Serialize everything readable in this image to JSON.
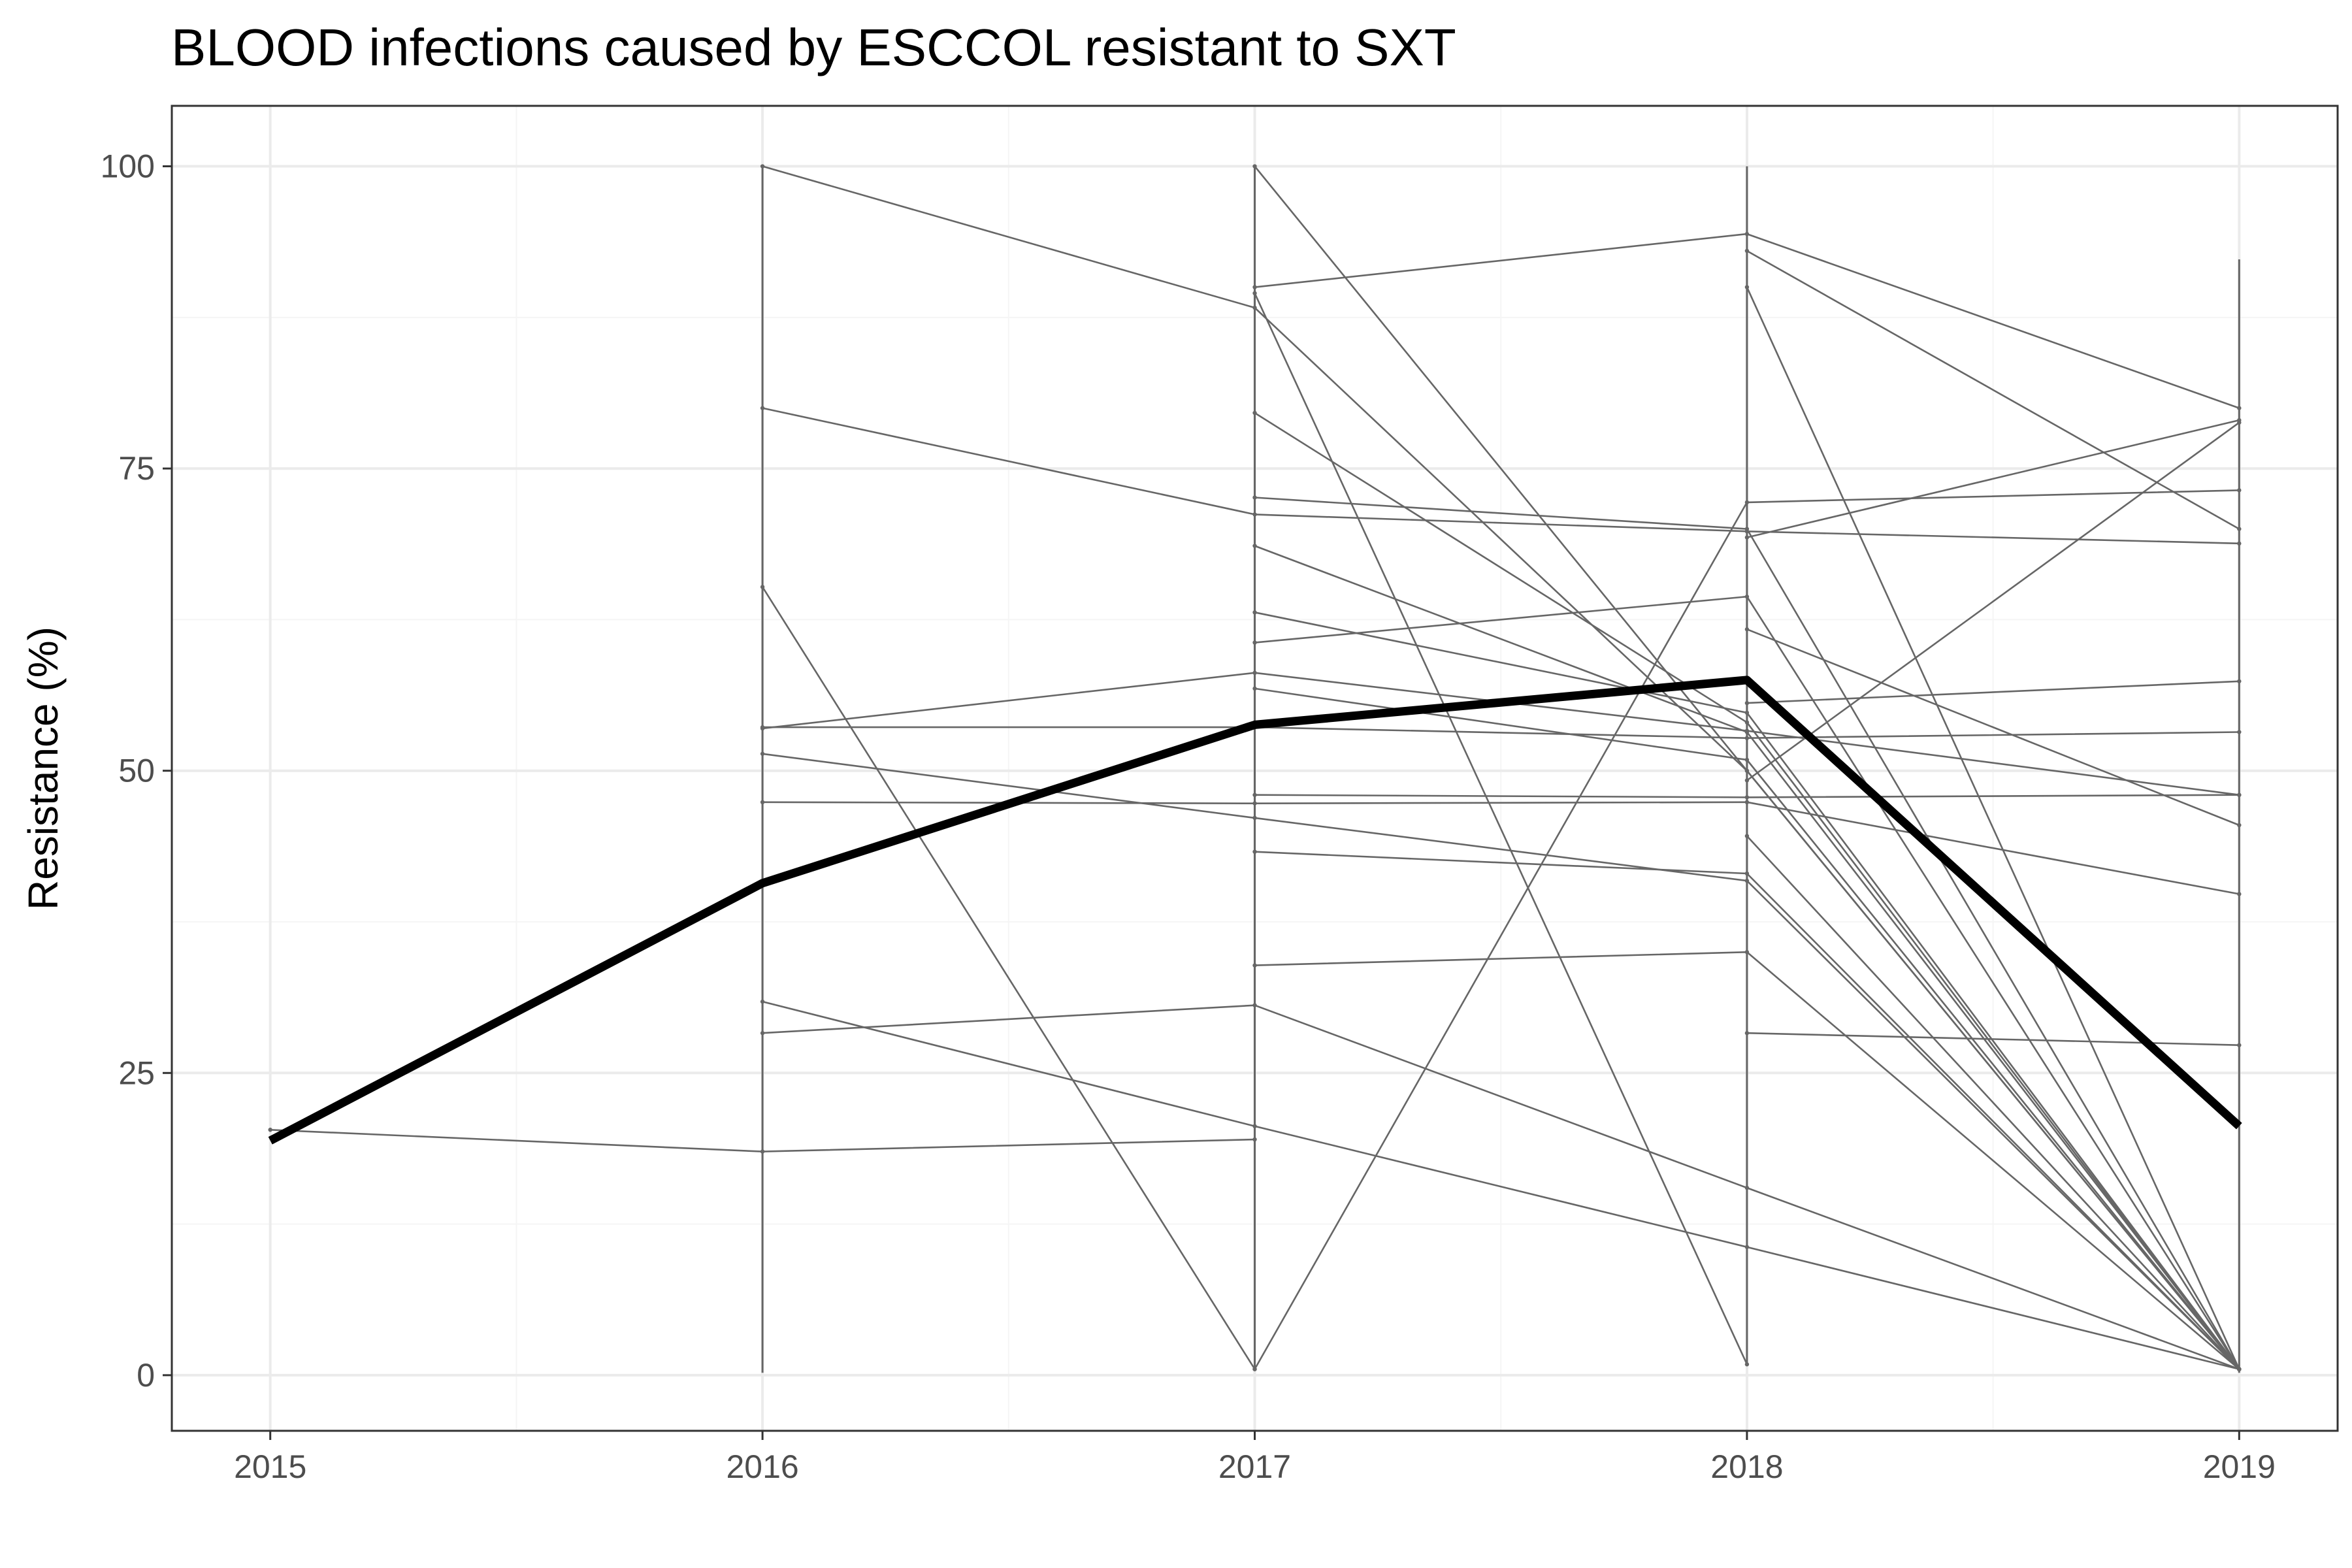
{
  "chart_data": {
    "type": "line",
    "title": "BLOOD infections caused by ESCCOL resistant to SXT",
    "xlabel": "",
    "ylabel": "Resistance (%)",
    "x_ticks": [
      "2015",
      "2016",
      "2017",
      "2018",
      "2019"
    ],
    "y_ticks": [
      "0",
      "25",
      "50",
      "75",
      "100"
    ],
    "xlim": [
      2014.8,
      2019.2
    ],
    "ylim": [
      -4.6,
      105
    ],
    "grid": true,
    "legend": "none",
    "colors": {
      "mean_line": "#000000",
      "series_lines": "#666666",
      "grid_major": "#ebebeb",
      "grid_minor": "#f5f5f5",
      "panel_border": "#333333"
    },
    "mean_series": {
      "x": [
        2015,
        2016,
        2017,
        2018,
        2019
      ],
      "values": [
        19.4,
        40.7,
        53.8,
        57.5,
        20.6
      ]
    },
    "series": [
      {
        "x": [
          2015,
          2016,
          2017
        ],
        "values": [
          20.3,
          18.5,
          19.5
        ]
      },
      {
        "x": [
          2016,
          2017,
          2018,
          2019
        ],
        "values": [
          100,
          88.3,
          50,
          0.5
        ]
      },
      {
        "x": [
          2016,
          2017,
          2018,
          2019
        ],
        "values": [
          80,
          71.2,
          69.8,
          68.8
        ]
      },
      {
        "x": [
          2016,
          2017
        ],
        "values": [
          65.2,
          0.5
        ]
      },
      {
        "x": [
          2016,
          2017,
          2018,
          2019
        ],
        "values": [
          53.5,
          58.1,
          53.3,
          48
        ]
      },
      {
        "x": [
          2016,
          2017,
          2018,
          2019
        ],
        "values": [
          53.6,
          53.6,
          52.7,
          53.2
        ]
      },
      {
        "x": [
          2016,
          2017,
          2018,
          2019
        ],
        "values": [
          51.4,
          46.1,
          40.9,
          0.5
        ]
      },
      {
        "x": [
          2016,
          2017,
          2018,
          2019
        ],
        "values": [
          47.4,
          47.3,
          47.4,
          39.8
        ]
      },
      {
        "x": [
          2016,
          2017,
          2018,
          2019
        ],
        "values": [
          30.9,
          20.6,
          10.6,
          0.5
        ]
      },
      {
        "x": [
          2016,
          2017,
          2018,
          2019
        ],
        "values": [
          28.3,
          30.6,
          15.5,
          0.5
        ]
      },
      {
        "x": [
          2017,
          2018,
          2019
        ],
        "values": [
          100,
          50,
          0.5
        ]
      },
      {
        "x": [
          2017,
          2018,
          2019
        ],
        "values": [
          90,
          94.4,
          80
        ]
      },
      {
        "x": [
          2017,
          2018
        ],
        "values": [
          89.5,
          0.9
        ]
      },
      {
        "x": [
          2017,
          2018,
          2019
        ],
        "values": [
          79.6,
          54,
          0.5
        ]
      },
      {
        "x": [
          2017,
          2018,
          2019
        ],
        "values": [
          72.6,
          70,
          0.5
        ]
      },
      {
        "x": [
          2017,
          2018,
          2019
        ],
        "values": [
          68.6,
          53.2,
          0.5
        ]
      },
      {
        "x": [
          2017,
          2018,
          2019
        ],
        "values": [
          63.1,
          54.8,
          0.5
        ]
      },
      {
        "x": [
          2017,
          2018,
          2019
        ],
        "values": [
          60.6,
          64.4,
          0.5
        ]
      },
      {
        "x": [
          2017,
          2018,
          2019
        ],
        "values": [
          56.8,
          50.9,
          0.5
        ]
      },
      {
        "x": [
          2017,
          2018,
          2019
        ],
        "values": [
          48,
          47.8,
          48
        ]
      },
      {
        "x": [
          2017,
          2018,
          2019
        ],
        "values": [
          43.3,
          41.5,
          0.5
        ]
      },
      {
        "x": [
          2017,
          2018,
          2019
        ],
        "values": [
          33.9,
          35,
          0.5
        ]
      },
      {
        "x": [
          2017,
          2018,
          2019
        ],
        "values": [
          0.5,
          72.2,
          73.2
        ]
      },
      {
        "x": [
          2018,
          2019
        ],
        "values": [
          93,
          70
        ]
      },
      {
        "x": [
          2018,
          2019
        ],
        "values": [
          90,
          0.5
        ]
      },
      {
        "x": [
          2018,
          2019
        ],
        "values": [
          69.3,
          79
        ]
      },
      {
        "x": [
          2018,
          2019
        ],
        "values": [
          61.7,
          45.5
        ]
      },
      {
        "x": [
          2018,
          2019
        ],
        "values": [
          55.6,
          57.4
        ]
      },
      {
        "x": [
          2018,
          2019
        ],
        "values": [
          49.2,
          78.8
        ]
      },
      {
        "x": [
          2018,
          2019
        ],
        "values": [
          44.6,
          0.5
        ]
      },
      {
        "x": [
          2018,
          2019
        ],
        "values": [
          28.3,
          27.3
        ]
      }
    ],
    "range_bars": [
      {
        "x": 2016,
        "values": [
          0.2,
          100
        ]
      },
      {
        "x": 2017,
        "values": [
          0.5,
          100
        ]
      },
      {
        "x": 2018,
        "values": [
          0.9,
          100
        ]
      },
      {
        "x": 2019,
        "values": [
          0.2,
          92.3
        ]
      }
    ]
  }
}
